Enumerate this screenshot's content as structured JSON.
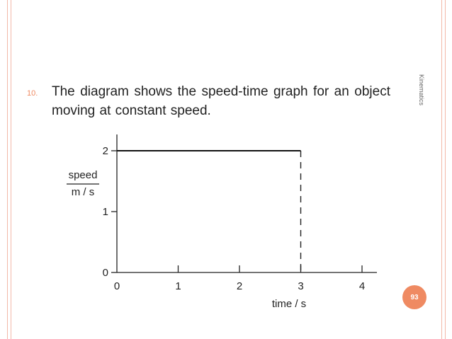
{
  "slide": {
    "section_label": "Kinematics",
    "page_number": "93",
    "question_number": "10.",
    "question_text": "The diagram shows the speed-time graph for an object moving at constant speed."
  },
  "colors": {
    "accent": "#ef8a62",
    "rule": "#f2b8a8"
  },
  "chart_data": {
    "type": "line",
    "title": "",
    "xlabel": "time / s",
    "ylabel_top": "speed",
    "ylabel_bottom": "m / s",
    "x_ticks": [
      "0",
      "1",
      "2",
      "3",
      "4"
    ],
    "y_ticks": [
      "0",
      "1",
      "2"
    ],
    "xlim": [
      0,
      4
    ],
    "ylim": [
      0,
      2
    ],
    "grid": false,
    "series": [
      {
        "x": [
          0,
          3
        ],
        "y": [
          2,
          2
        ]
      }
    ],
    "dashed_drop": {
      "x": 3,
      "from_y": 2,
      "to_y": 0
    }
  }
}
